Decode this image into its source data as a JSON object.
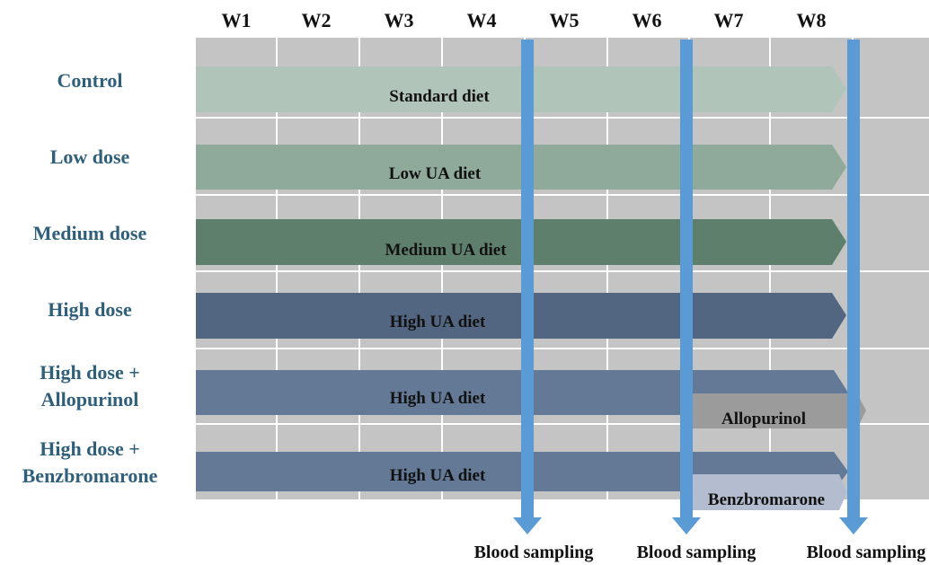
{
  "weeks": [
    "W1",
    "W2",
    "W3",
    "W4",
    "W5",
    "W6",
    "W7",
    "W8"
  ],
  "groups": [
    {
      "label": "Control",
      "diet": "Standard diet",
      "color": "#b0c4b9"
    },
    {
      "label": "Low dose",
      "diet": "Low UA diet",
      "color": "#8fa99a"
    },
    {
      "label": "Medium dose",
      "diet": "Medium UA diet",
      "color": "#5f7f6d"
    },
    {
      "label": "High dose",
      "diet": "High UA diet",
      "color": "#536681"
    },
    {
      "label": "High dose +\nAllopurinol",
      "diet": "High UA diet",
      "color": "#637996",
      "treatment": "Allopurinol",
      "treatment_color": "#9b9b9b"
    },
    {
      "label": "High dose +\nBenzbromarone",
      "diet": "High UA diet",
      "color": "#637996",
      "treatment": "Benzbromarone",
      "treatment_color": "#b3bdcf"
    }
  ],
  "sampling": [
    "Blood sampling",
    "Blood sampling",
    "Blood sampling"
  ],
  "colors": {
    "grid": "#c4c4c4",
    "sampling_arrow": "#5b9bd5",
    "group_label": "#2f5f7a"
  }
}
